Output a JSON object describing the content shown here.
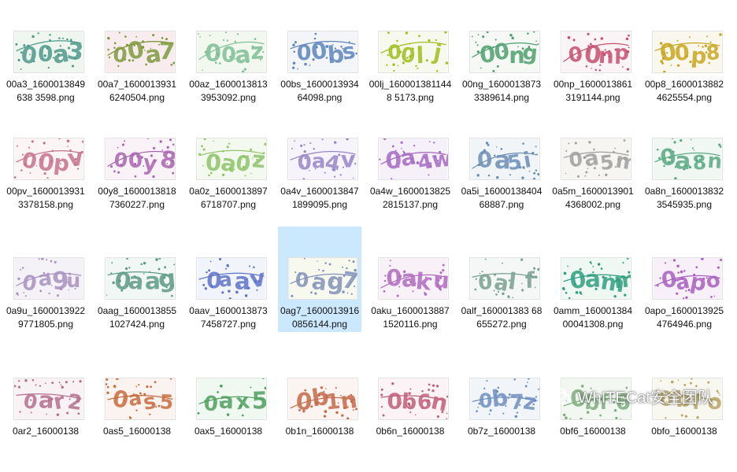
{
  "files": [
    {
      "name": "00a3_1600013849638 3598.png",
      "text": "00a3",
      "bg": "#eef6ef",
      "color": "#4f9a8c"
    },
    {
      "name": "00a7_16000139316240504.png",
      "text": "00a7",
      "bg": "#f8ecee",
      "color": "#7f9a3f"
    },
    {
      "name": "00az_16000138133953092.png",
      "text": "00az",
      "bg": "#f3f8ef",
      "color": "#7fbf96"
    },
    {
      "name": "00bs_160001393464098.png",
      "text": "00bs",
      "bg": "#f3f5f8",
      "color": "#5f86bf"
    },
    {
      "name": "00lj_1600013811448 5173.png",
      "text": "00lj",
      "bg": "#f7f9ee",
      "color": "#9fbf1f"
    },
    {
      "name": "00ng_16000138733389614.png",
      "text": "00ng",
      "bg": "#f5f8f5",
      "color": "#4f9f6f"
    },
    {
      "name": "00np_16000138613191144.png",
      "text": "00np",
      "bg": "#fbf4f6",
      "color": "#c74f6f"
    },
    {
      "name": "00p8_16000138824625554.png",
      "text": "00p8",
      "bg": "#f9f7ee",
      "color": "#c9a61f"
    },
    {
      "name": "00pv_16000139313378158.png",
      "text": "00pv",
      "bg": "#fbf5f6",
      "color": "#c7738f"
    },
    {
      "name": "00y8_16000138187360227.png",
      "text": "00y8",
      "bg": "#f9f3f8",
      "color": "#a866b0"
    },
    {
      "name": "0a0z_16000138976718707.png",
      "text": "0a0z",
      "bg": "#f4f9ef",
      "color": "#8fc46a"
    },
    {
      "name": "0a4v_16000138471899095.png",
      "text": "0a4v",
      "bg": "#f6f3fa",
      "color": "#9a86c7"
    },
    {
      "name": "0a4w_16000138252815137.png",
      "text": "0a4w",
      "bg": "#f6f0f8",
      "color": "#a66bc4"
    },
    {
      "name": "0a5i_1600013840468887.png",
      "text": "0a5i",
      "bg": "#f2f5f8",
      "color": "#6b8fb6"
    },
    {
      "name": "0a5m_16000139014368002.png",
      "text": "0a5m",
      "bg": "#f6f5f2",
      "color": "#9f9f9f"
    },
    {
      "name": "0a8n_16000138323545935.png",
      "text": "0a8n",
      "bg": "#f1f8f4",
      "color": "#5aa983"
    },
    {
      "name": "0a9u_16000139229771805.png",
      "text": "0a9u",
      "bg": "#f5f2f7",
      "color": "#a992bf"
    },
    {
      "name": "0aag_16000138551027424.png",
      "text": "0aag",
      "bg": "#f1f7f4",
      "color": "#5f9a86"
    },
    {
      "name": "0aav_16000138737458727.png",
      "text": "0aav",
      "bg": "#f2f4fb",
      "color": "#5f73c9"
    },
    {
      "name": "0ag7_16000139160856144.png",
      "text": "0ag7",
      "bg": "#f8f9ee",
      "color": "#8391b8"
    },
    {
      "name": "0aku_16000138871520116.png",
      "text": "0aku",
      "bg": "#f8f1f8",
      "color": "#b06cbf"
    },
    {
      "name": "0alf_160001383 68655272.png",
      "text": "0alf",
      "bg": "#f4f7f5",
      "color": "#7aa092"
    },
    {
      "name": "0amm_16000138400041308.png",
      "text": "0amm",
      "bg": "#f0f8f4",
      "color": "#2f9f7f"
    },
    {
      "name": "0apo_16000139254764946.png",
      "text": "0apo",
      "bg": "#f7f0f8",
      "color": "#a95fbf"
    },
    {
      "name": "0ar2_16000138",
      "text": "0ar2",
      "bg": "#f8f2f4",
      "color": "#b56f8f"
    },
    {
      "name": "0as5_16000138",
      "text": "0as5",
      "bg": "#fbf3ef",
      "color": "#c86c3f"
    },
    {
      "name": "0ax5_16000138",
      "text": "0ax5",
      "bg": "#f0f8f2",
      "color": "#4f9f5f"
    },
    {
      "name": "0b1n_16000138",
      "text": "0b1n",
      "bg": "#fbf4f1",
      "color": "#c66a4a"
    },
    {
      "name": "0b6n_16000138",
      "text": "0b6n",
      "bg": "#fbf3f5",
      "color": "#c25f7a"
    },
    {
      "name": "0b7z_16000138",
      "text": "0b7z",
      "bg": "#f1f4f8",
      "color": "#6f8fbf"
    },
    {
      "name": "0bf6_16000138",
      "text": "0bf6",
      "bg": "#f3f7f2",
      "color": "#7fae7f"
    },
    {
      "name": "0bfo_16000138",
      "text": "0bfo",
      "bg": "#f8f7f0",
      "color": "#b8a66a"
    }
  ],
  "selected_index": 19,
  "watermark": {
    "text": "WhITECat安全团队",
    "icon": "wechat-icon"
  }
}
